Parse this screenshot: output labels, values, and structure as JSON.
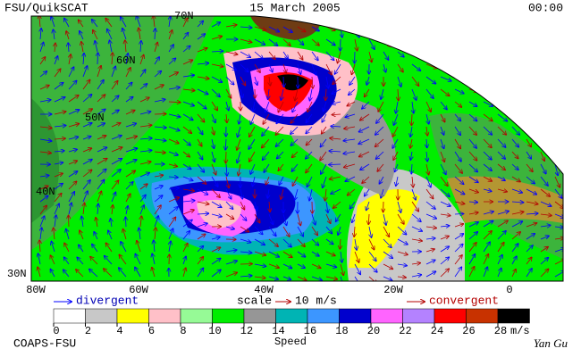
{
  "header": {
    "product": "FSU/QuikSCAT",
    "date": "15 March 2005",
    "time": "00:00"
  },
  "map": {
    "lat_labels": [
      "70N",
      "60N",
      "50N",
      "40N",
      "30N"
    ],
    "lon_labels": [
      "80W",
      "60W",
      "40W",
      "20W",
      "0"
    ]
  },
  "legend": {
    "divergent": "divergent",
    "scale": "scale",
    "scale_value": "10 m/s",
    "convergent": "convergent"
  },
  "colorbar": {
    "ticks": [
      0,
      2,
      4,
      6,
      8,
      10,
      12,
      14,
      16,
      18,
      20,
      22,
      24,
      26,
      28
    ],
    "unit": "m/s",
    "label": "Speed",
    "colors": [
      "#ffffff",
      "#c8c8c8",
      "#ffff00",
      "#ffc0c8",
      "#96fa96",
      "#00ee00",
      "#969696",
      "#00b4b4",
      "#3c96ff",
      "#0000cd",
      "#ff64ff",
      "#b482ff",
      "#ff0000",
      "#c83200",
      "#000000"
    ]
  },
  "footer": {
    "credit": "COAPS-FSU",
    "signature": "Yan Gu"
  }
}
